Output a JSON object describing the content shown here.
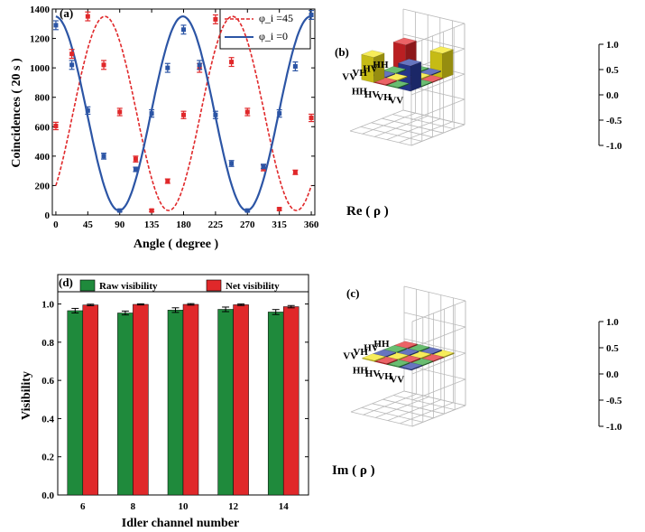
{
  "chart_data": [
    {
      "panel": "(a)",
      "type": "line",
      "xlabel": "Angle ( degree )",
      "ylabel": "Coincidences ( 20 s )",
      "xlim": [
        -5,
        365
      ],
      "ylim": [
        0,
        1400
      ],
      "xticks": [
        0,
        45,
        90,
        135,
        180,
        225,
        270,
        315,
        360
      ],
      "yticks": [
        0,
        200,
        400,
        600,
        800,
        1000,
        1200,
        1400
      ],
      "legend_position": "top-right",
      "series": [
        {
          "name": "φ_i =45",
          "color": "#e0282a",
          "style": "dashed",
          "x": [
            0,
            22.5,
            45,
            67.5,
            90,
            112.5,
            135,
            157.5,
            180,
            202.5,
            225,
            247.5,
            270,
            292.5,
            315,
            337.5,
            360
          ],
          "y": [
            605,
            1095,
            1350,
            1020,
            700,
            380,
            30,
            230,
            680,
            1000,
            1330,
            1040,
            700,
            320,
            40,
            290,
            660
          ],
          "err": [
            25,
            30,
            30,
            30,
            25,
            20,
            8,
            15,
            25,
            30,
            30,
            30,
            25,
            20,
            8,
            15,
            25
          ]
        },
        {
          "name": "φ_i =0",
          "color": "#2c55a5",
          "style": "solid",
          "x": [
            0,
            22.5,
            45,
            67.5,
            90,
            112.5,
            135,
            157.5,
            180,
            202.5,
            225,
            247.5,
            270,
            292.5,
            315,
            337.5,
            360
          ],
          "y": [
            1290,
            1020,
            710,
            400,
            30,
            310,
            690,
            1000,
            1260,
            1020,
            680,
            350,
            30,
            330,
            690,
            1010,
            1360
          ],
          "err": [
            30,
            30,
            25,
            20,
            8,
            15,
            25,
            30,
            30,
            30,
            25,
            20,
            8,
            15,
            25,
            30,
            30
          ]
        }
      ]
    },
    {
      "panel": "(b)",
      "type": "bar3d",
      "axis_title": "Re ( ρ )",
      "zticks": [
        "1.0",
        "0.5",
        "0.0",
        "-0.5",
        "-1.0"
      ],
      "zlim": [
        -1,
        1
      ],
      "row_labels": [
        "HH",
        "HV",
        "VH",
        "VV"
      ],
      "col_labels": [
        "HH",
        "HV",
        "VH",
        "VV"
      ],
      "values": [
        [
          0.5,
          0.0,
          0.0,
          0.5
        ],
        [
          0.0,
          0.0,
          0.0,
          0.0
        ],
        [
          0.0,
          0.0,
          0.0,
          0.0
        ],
        [
          0.5,
          0.0,
          0.0,
          0.5
        ]
      ]
    },
    {
      "panel": "(c)",
      "type": "bar3d",
      "axis_title": "Im ( ρ )",
      "zticks": [
        "1.0",
        "0.5",
        "0.0",
        "-0.5",
        "-1.0"
      ],
      "zlim": [
        -1,
        1
      ],
      "row_labels": [
        "HH",
        "HV",
        "VH",
        "VV"
      ],
      "col_labels": [
        "HH",
        "HV",
        "VH",
        "VV"
      ],
      "values": [
        [
          0.02,
          0.02,
          0.02,
          0.02
        ],
        [
          0.02,
          0.02,
          0.02,
          0.02
        ],
        [
          0.02,
          0.02,
          0.02,
          0.02
        ],
        [
          0.02,
          0.02,
          0.02,
          0.02
        ]
      ]
    },
    {
      "panel": "(d)",
      "type": "bar",
      "xlabel": "Idler channel number",
      "ylabel": "Visibility",
      "categories": [
        "6",
        "8",
        "10",
        "12",
        "14"
      ],
      "ylim": [
        0,
        1.05
      ],
      "yticks": [
        "0.0",
        "0.2",
        "0.4",
        "0.6",
        "0.8",
        "1.0"
      ],
      "legend_position": "top",
      "series": [
        {
          "name": "Raw visibility",
          "color": "#1f8a3c",
          "values": [
            0.965,
            0.953,
            0.968,
            0.972,
            0.958
          ],
          "err": [
            0.012,
            0.01,
            0.012,
            0.012,
            0.013
          ]
        },
        {
          "name": "Net visibility",
          "color": "#e0282a",
          "values": [
            0.995,
            0.998,
            0.998,
            0.996,
            0.986
          ],
          "err": [
            0.004,
            0.003,
            0.004,
            0.004,
            0.006
          ]
        }
      ]
    }
  ],
  "colors": {
    "HH": "#e3262a",
    "HV": "#2fa33a",
    "VH": "#2c3fa6",
    "VV": "#f2e41a"
  }
}
